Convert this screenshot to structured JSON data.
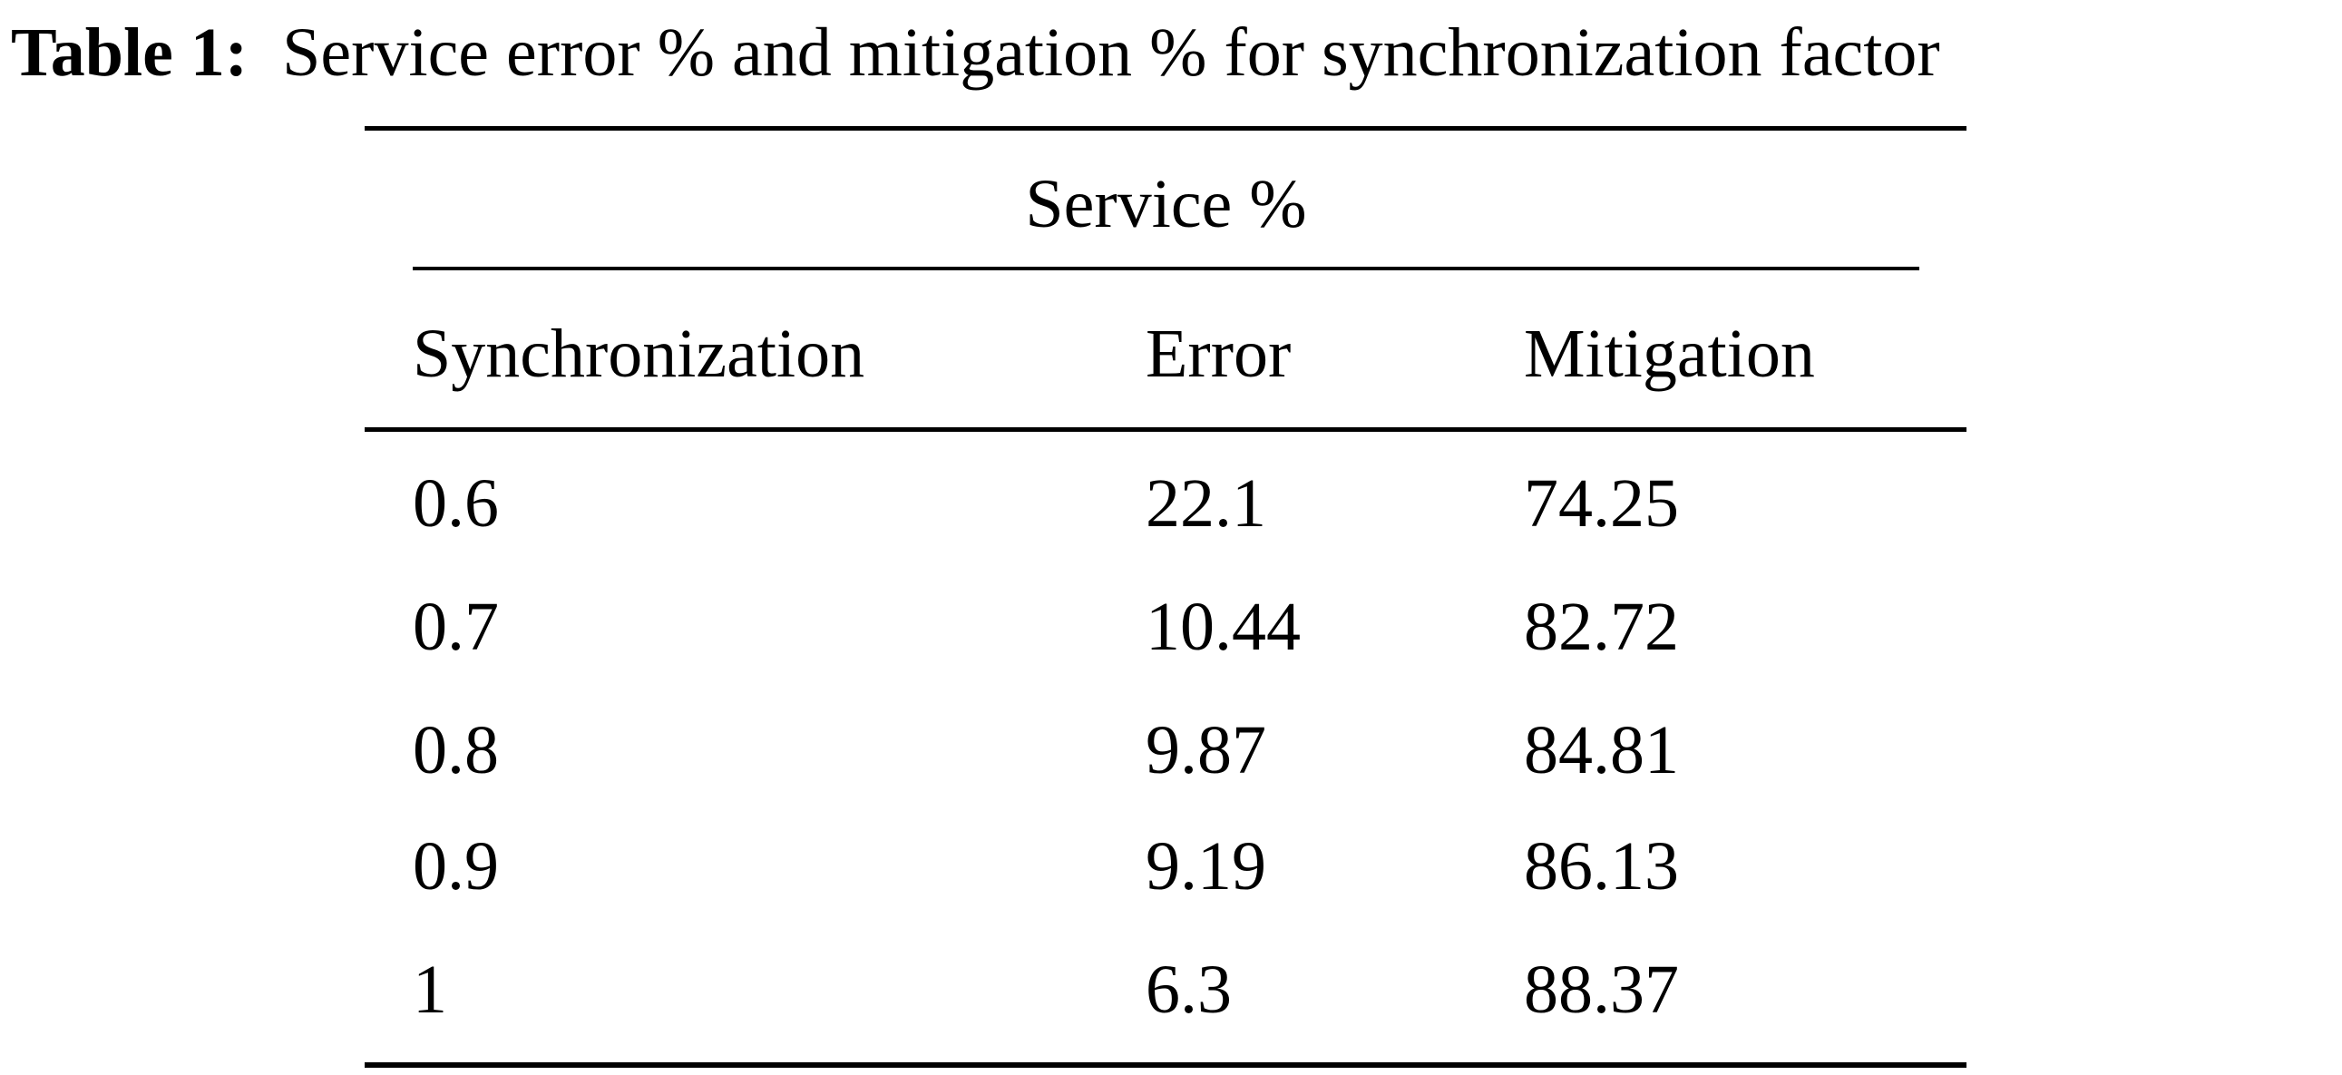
{
  "caption": {
    "label": "Table 1:",
    "text": "Service error % and mitigation % for synchronization factor"
  },
  "table": {
    "group_header": "Service %",
    "columns": [
      "Synchronization",
      "Error",
      "Mitigation"
    ],
    "rows": [
      [
        "0.6",
        "22.1",
        "74.25"
      ],
      [
        "0.7",
        "10.44",
        "82.72"
      ],
      [
        "0.8",
        "9.87",
        "84.81"
      ],
      [
        "0.9",
        "9.19",
        "86.13"
      ],
      [
        "1",
        "6.3",
        "88.37"
      ]
    ]
  }
}
